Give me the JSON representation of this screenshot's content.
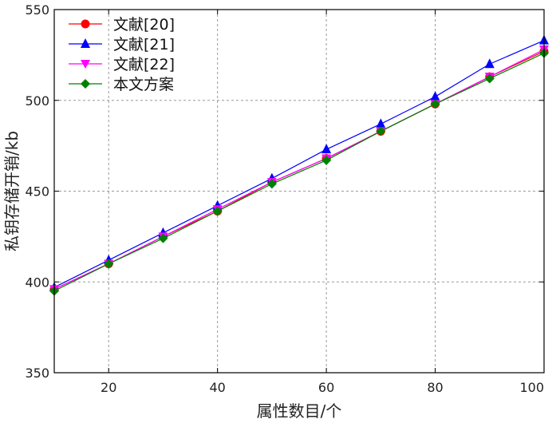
{
  "chart_data": {
    "type": "line",
    "xlabel": "属性数目/个",
    "ylabel": "私钥存储开销/kb",
    "xlim": [
      10,
      100
    ],
    "ylim": [
      350,
      550
    ],
    "xticks": [
      20,
      40,
      60,
      80,
      100
    ],
    "yticks": [
      350,
      400,
      450,
      500,
      550
    ],
    "grid": true,
    "legend_position": "top-left",
    "x": [
      10,
      20,
      30,
      40,
      50,
      60,
      70,
      80,
      90,
      100
    ],
    "series": [
      {
        "name": "文献[20]",
        "color": "#ff0000",
        "marker": "circle",
        "values": [
          396,
          410,
          425,
          439,
          455,
          468,
          483,
          498,
          513,
          527
        ]
      },
      {
        "name": "文献[21]",
        "color": "#0000ff",
        "marker": "triangle-up",
        "values": [
          397,
          412,
          427,
          442,
          457,
          473,
          487,
          502,
          520,
          533
        ]
      },
      {
        "name": "文献[22]",
        "color": "#ff00ff",
        "marker": "triangle-down",
        "values": [
          396,
          410,
          425,
          440,
          455,
          468,
          483,
          498,
          513,
          528
        ]
      },
      {
        "name": "本文方案",
        "color": "#008000",
        "marker": "diamond",
        "values": [
          395,
          410,
          424,
          439,
          454,
          467,
          483,
          498,
          512,
          526
        ]
      }
    ]
  }
}
